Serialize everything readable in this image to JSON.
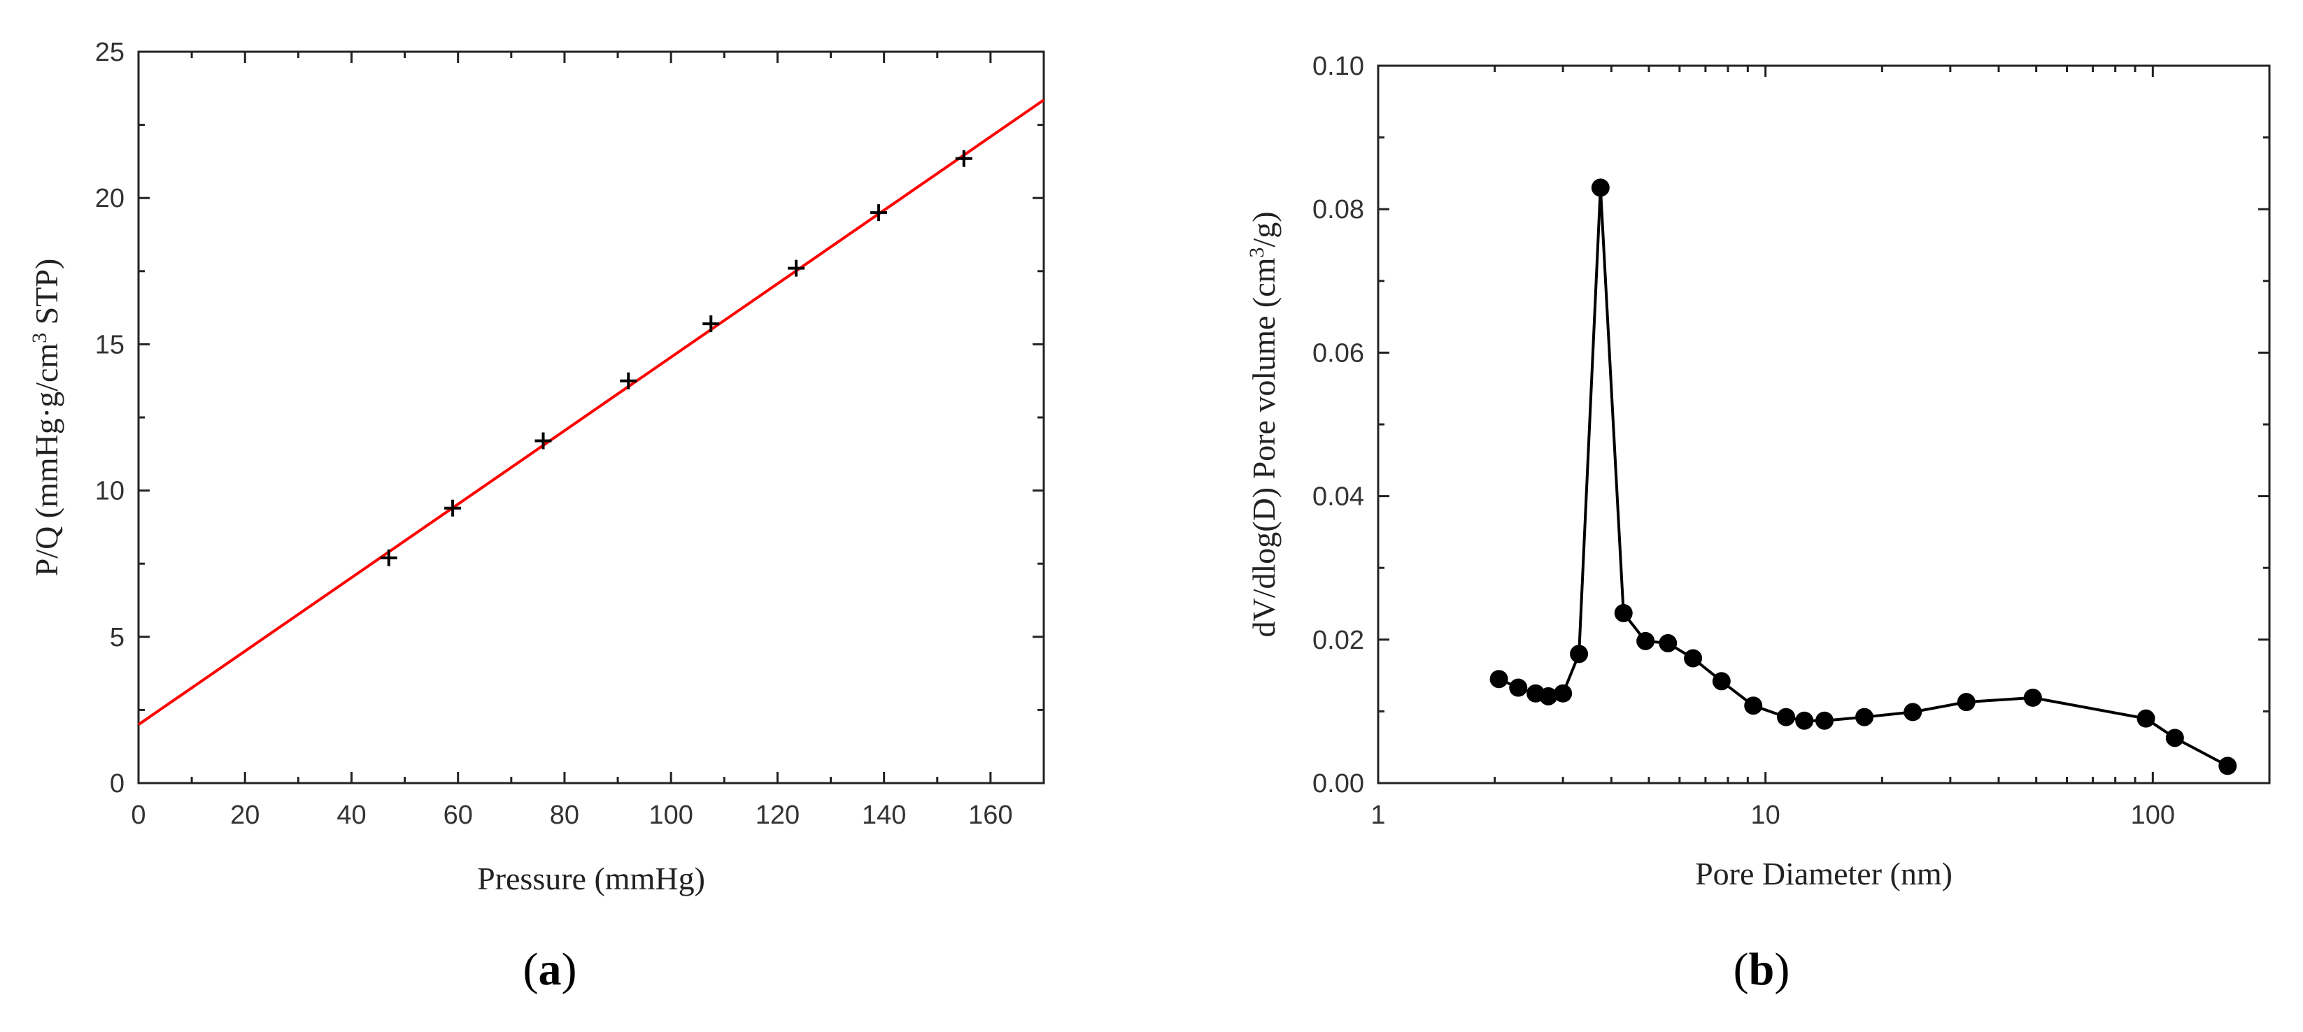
{
  "colors": {
    "fit_line": "#ff0000",
    "markers": "#000000",
    "axes": "#222222"
  },
  "chart_data": [
    {
      "panel": "a",
      "panel_label": {
        "open": "(",
        "letter": "a",
        "close": ")"
      },
      "type": "scatter",
      "xlabel": "Pressure (mmHg)",
      "ylabel": {
        "main": "P/Q (mmHg·g/cm",
        "sup": "3",
        "tail": " STP)"
      },
      "xlim": [
        0,
        170
      ],
      "ylim": [
        0,
        25
      ],
      "xticks": [
        0,
        20,
        40,
        60,
        80,
        100,
        120,
        140,
        160
      ],
      "yticks": [
        0,
        5,
        10,
        15,
        20,
        25
      ],
      "marker": "plus",
      "grid": false,
      "series": [
        {
          "x": [
            47,
            59,
            76,
            92,
            107.5,
            123.5,
            139,
            155
          ],
          "y": [
            7.7,
            9.4,
            11.7,
            13.75,
            15.7,
            17.6,
            19.5,
            21.35
          ]
        }
      ],
      "fit_line": {
        "x": [
          0,
          170
        ],
        "y": [
          2.0,
          23.35
        ]
      }
    },
    {
      "panel": "b",
      "panel_label": {
        "open": "(",
        "letter": "b",
        "close": ")"
      },
      "type": "line",
      "xscale": "log",
      "xlabel": "Pore Diameter (nm)",
      "ylabel": {
        "main": "dV/dlog(D) Pore volume (cm",
        "sup": "3",
        "tail": "/g)"
      },
      "xlim": [
        1,
        200
      ],
      "ylim": [
        0,
        0.1
      ],
      "xticks": [
        1,
        10,
        100
      ],
      "xtick_labels": [
        "1",
        "10",
        "100"
      ],
      "yticks": [
        0,
        0.02,
        0.04,
        0.06,
        0.08,
        0.1
      ],
      "ytick_labels": [
        "0.00",
        "0.02",
        "0.04",
        "0.06",
        "0.08",
        "0.10"
      ],
      "marker": "filled-circle",
      "grid": false,
      "series": [
        {
          "x": [
            2.05,
            2.3,
            2.55,
            2.75,
            3.0,
            3.3,
            3.75,
            4.3,
            4.9,
            5.6,
            6.5,
            7.7,
            9.3,
            11.3,
            12.6,
            14.2,
            18,
            24,
            33,
            49,
            96,
            114,
            156
          ],
          "y": [
            0.0145,
            0.0133,
            0.0125,
            0.0121,
            0.0125,
            0.018,
            0.083,
            0.0237,
            0.0198,
            0.0195,
            0.0174,
            0.0142,
            0.0108,
            0.0092,
            0.0087,
            0.0087,
            0.0092,
            0.0099,
            0.0113,
            0.0119,
            0.009,
            0.0063,
            0.0024
          ]
        }
      ]
    }
  ]
}
